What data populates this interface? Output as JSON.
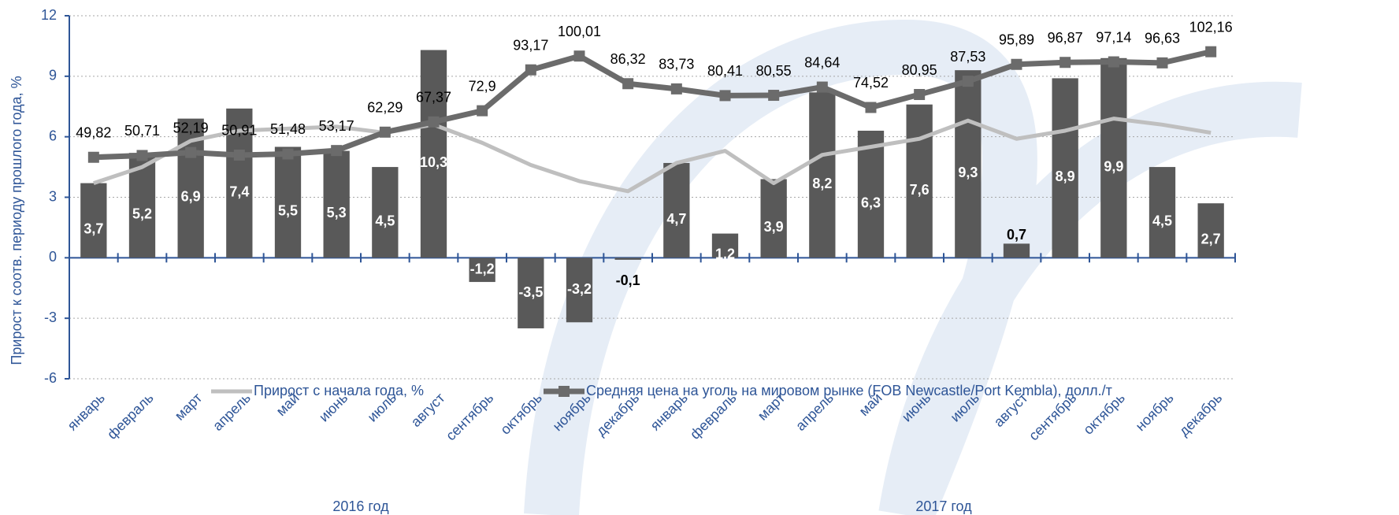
{
  "chart_data": {
    "type": "bar",
    "y_label": "Прирост к соотв. периоду прошлого года, %",
    "categories": [
      "январь",
      "февраль",
      "март",
      "апрель",
      "май",
      "июнь",
      "июль",
      "август",
      "сентябрь",
      "октябрь",
      "ноябрь",
      "декабрь",
      "январь",
      "февраль",
      "март",
      "апрель",
      "май",
      "июнь",
      "июль",
      "август",
      "сентябрь",
      "октябрь",
      "ноябрь",
      "декабрь"
    ],
    "groups": [
      {
        "label": "2016 год",
        "span": [
          0,
          11
        ]
      },
      {
        "label": "2017 год",
        "span": [
          12,
          23
        ]
      }
    ],
    "ylim": [
      -6,
      12
    ],
    "yticks": [
      -6,
      -3,
      0,
      3,
      6,
      9,
      12
    ],
    "y2lim": [
      -60,
      120
    ],
    "grid": true,
    "legend": "bottom",
    "series": [
      {
        "type": "bar",
        "color": "#595959",
        "values": [
          3.7,
          5.2,
          6.9,
          7.4,
          5.5,
          5.3,
          4.5,
          10.3,
          -1.2,
          -3.5,
          -3.2,
          -0.1,
          4.7,
          1.2,
          3.9,
          8.2,
          6.3,
          7.6,
          9.3,
          0.7,
          8.9,
          9.9,
          4.5,
          2.7
        ],
        "value_labels": [
          "3,7",
          "5,2",
          "6,9",
          "7,4",
          "5,5",
          "5,3",
          "4,5",
          "10,3",
          "-1,2",
          "-3,5",
          "-3,2",
          "-0,1",
          "4,7",
          "1,2",
          "3,9",
          "8,2",
          "6,3",
          "7,6",
          "9,3",
          "0,7",
          "8,9",
          "9,9",
          "4,5",
          "2,7"
        ]
      },
      {
        "type": "line",
        "name": "Прирост с начала года, %",
        "color": "#bfbfbf",
        "values": [
          3.7,
          4.5,
          5.8,
          6.3,
          6.4,
          6.5,
          6.2,
          6.6,
          5.7,
          4.6,
          3.8,
          3.3,
          4.7,
          5.3,
          3.7,
          5.1,
          5.5,
          5.9,
          6.8,
          5.9,
          6.3,
          6.9,
          6.6,
          6.2
        ]
      },
      {
        "type": "line",
        "axis": "y2",
        "markers": true,
        "name": "Средняя цена на уголь на мировом рынке (FOB Newcastle/Port Kembla), долл./т",
        "color": "#6b6b6b",
        "values": [
          49.82,
          50.71,
          52.19,
          50.91,
          51.48,
          53.17,
          62.29,
          67.37,
          72.9,
          93.17,
          100.01,
          86.32,
          83.73,
          80.41,
          80.55,
          84.64,
          74.52,
          80.95,
          87.53,
          95.89,
          96.87,
          97.14,
          96.63,
          102.16
        ],
        "value_labels": [
          "49,82",
          "50,71",
          "52,19",
          "50,91",
          "51,48",
          "53,17",
          "62,29",
          "67,37",
          "72,9",
          "93,17",
          "100,01",
          "86,32",
          "83,73",
          "80,41",
          "80,55",
          "84,64",
          "74,52",
          "80,95",
          "87,53",
          "95,89",
          "96,87",
          "97,14",
          "96,63",
          "102,16"
        ]
      }
    ]
  }
}
